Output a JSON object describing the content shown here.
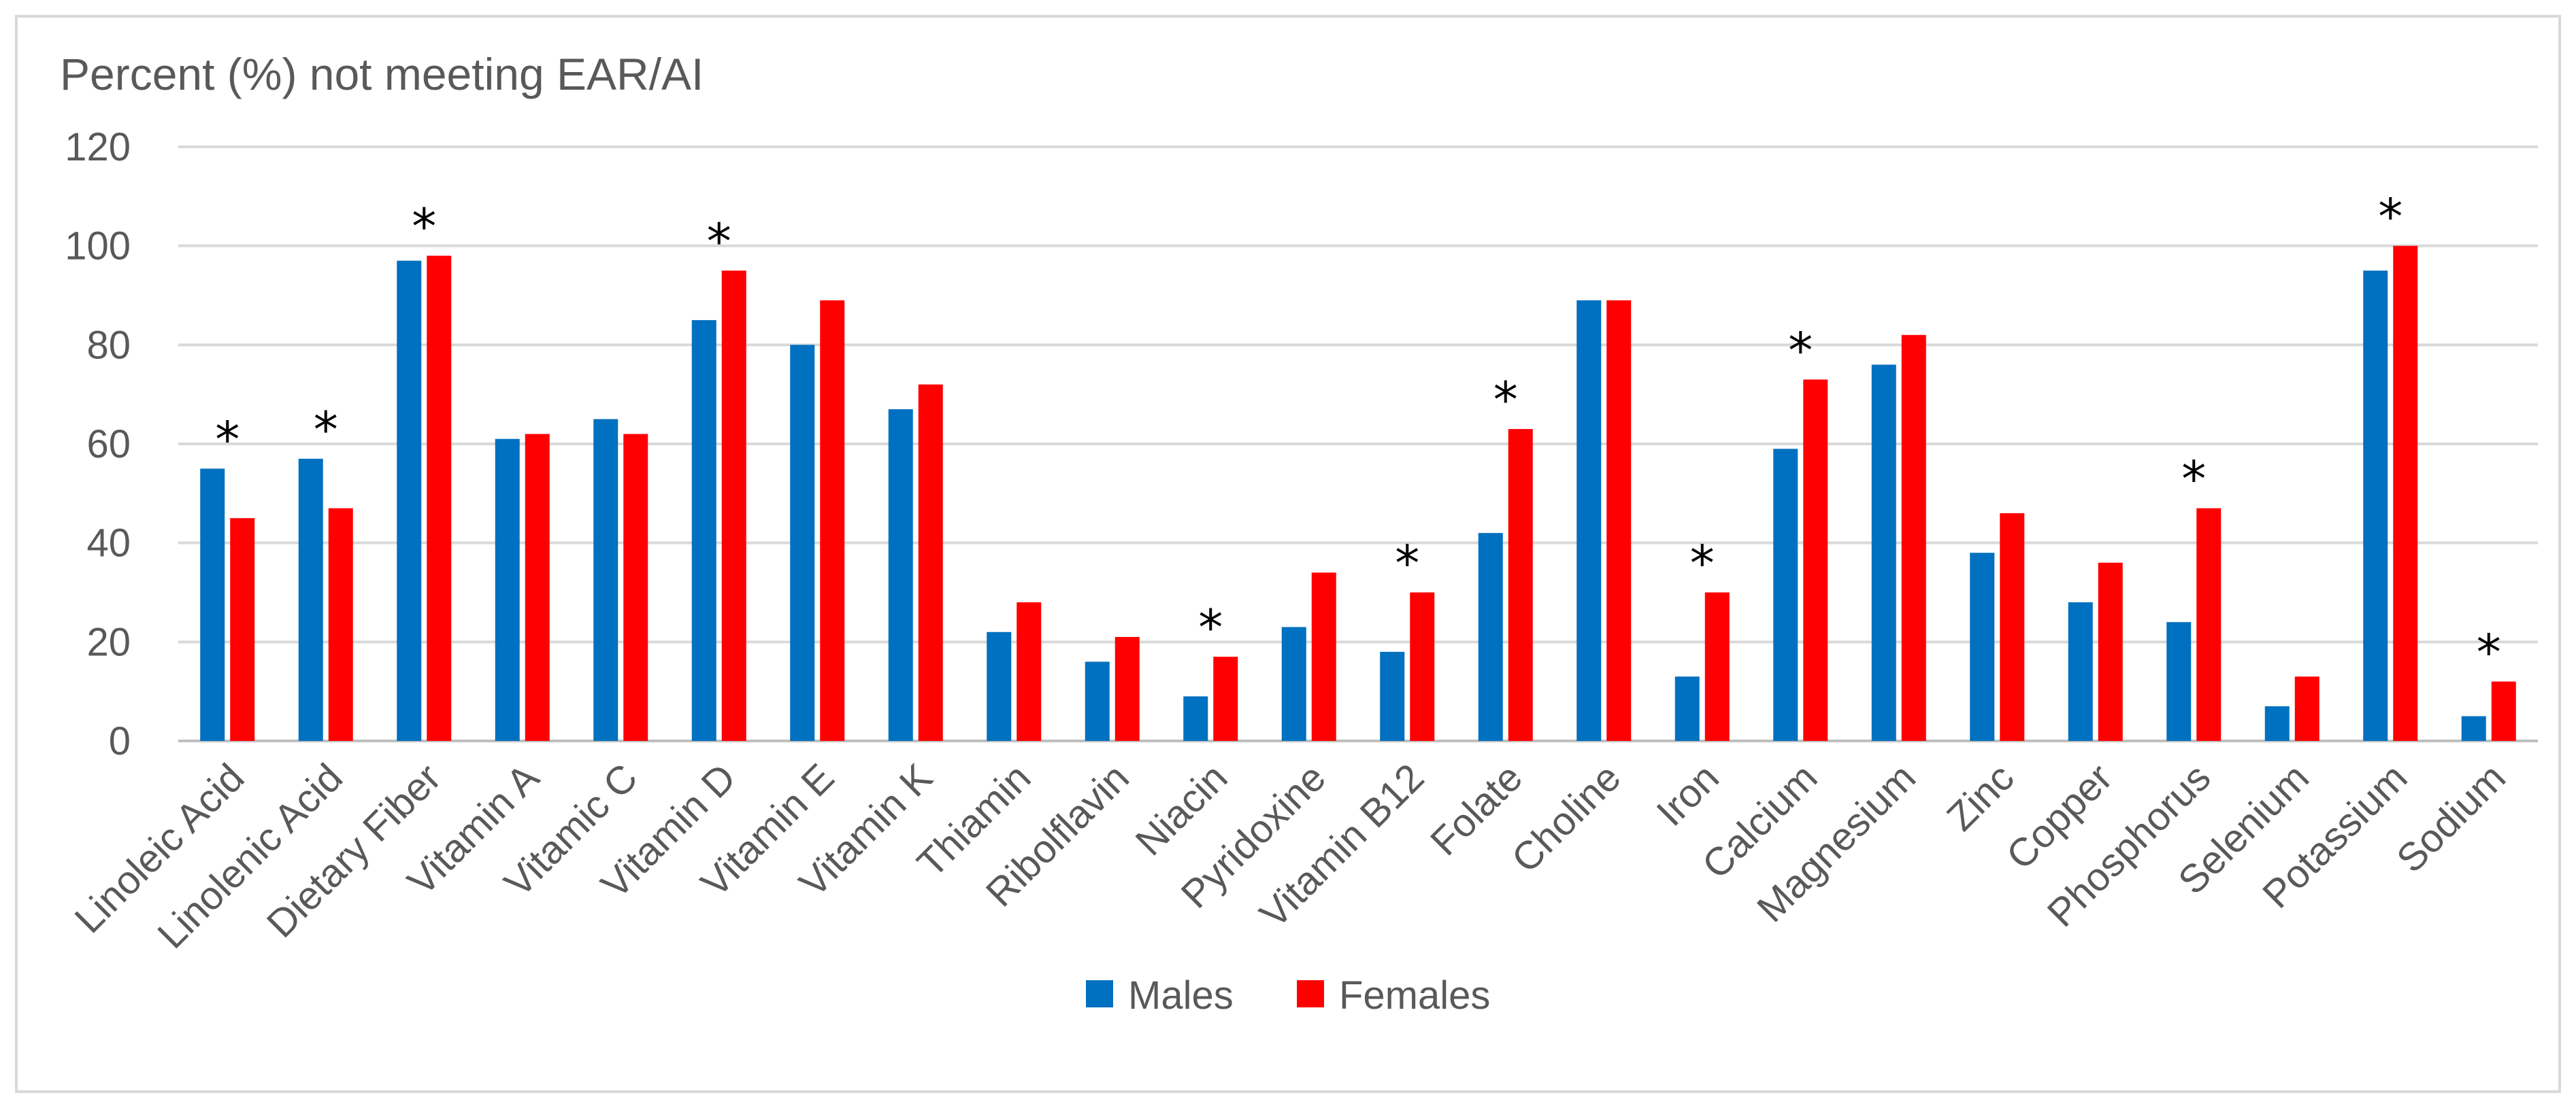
{
  "chart_data": {
    "type": "bar",
    "title": "Percent (%) not meeting EAR/AI",
    "xlabel": "",
    "ylabel": "",
    "ylim": [
      0,
      120
    ],
    "yticks": [
      0,
      20,
      40,
      60,
      80,
      100,
      120
    ],
    "grid": true,
    "legend_position": "bottom",
    "categories": [
      "Linoleic Acid",
      "Linolenic Acid",
      "Dietary Fiber",
      "Vitamin A",
      "Vitamic C",
      "Vitamin D",
      "Vitamin E",
      "Vitamin K",
      "Thiamin",
      "Ribolflavin",
      "Niacin",
      "Pyridoxine",
      "Vitamin B12",
      "Folate",
      "Choline",
      "Iron",
      "Calcium",
      "Magnesium",
      "Zinc",
      "Copper",
      "Phosphorus",
      "Selenium",
      "Potassium",
      "Sodium"
    ],
    "series": [
      {
        "name": "Males",
        "color": "#0070c0",
        "values": [
          55,
          57,
          97,
          61,
          65,
          85,
          80,
          67,
          22,
          16,
          9,
          23,
          18,
          42,
          89,
          13,
          59,
          76,
          38,
          28,
          24,
          7,
          95,
          5
        ]
      },
      {
        "name": "Females",
        "color": "#ff0000",
        "values": [
          45,
          47,
          98,
          62,
          62,
          95,
          89,
          72,
          28,
          21,
          17,
          34,
          30,
          63,
          89,
          30,
          73,
          82,
          46,
          36,
          47,
          13,
          100,
          12
        ]
      }
    ],
    "significance_marker": "*",
    "significant": [
      true,
      true,
      true,
      false,
      false,
      true,
      false,
      false,
      false,
      false,
      true,
      false,
      true,
      true,
      false,
      true,
      true,
      false,
      false,
      false,
      true,
      false,
      true,
      true
    ]
  }
}
